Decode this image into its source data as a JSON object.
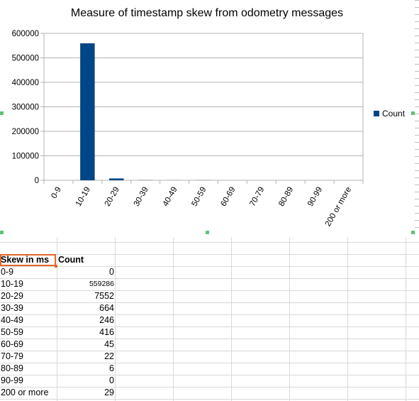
{
  "chart_data": {
    "type": "bar",
    "title": "Measure of timestamp skew from odometry messages",
    "categories": [
      "0-9",
      "10-19",
      "20-29",
      "30-39",
      "40-49",
      "50-59",
      "60-69",
      "70-79",
      "80-89",
      "90-99",
      "200 or more"
    ],
    "series": [
      {
        "name": "Count",
        "values": [
          0,
          559286,
          7552,
          664,
          246,
          416,
          45,
          22,
          6,
          0,
          29
        ],
        "color": "#004586"
      }
    ],
    "ylim": [
      0,
      600000
    ],
    "yticks": [
      "600000",
      "500000",
      "400000",
      "300000",
      "200000",
      "100000",
      "0"
    ],
    "grid": true,
    "legend": "right"
  },
  "table": {
    "headers": [
      "Skew in ms",
      "Count"
    ],
    "rows": [
      [
        "0-9",
        "0"
      ],
      [
        "10-19",
        "559286"
      ],
      [
        "20-29",
        "7552"
      ],
      [
        "30-39",
        "664"
      ],
      [
        "40-49",
        "246"
      ],
      [
        "50-59",
        "416"
      ],
      [
        "60-69",
        "45"
      ],
      [
        "70-79",
        "22"
      ],
      [
        "80-89",
        "6"
      ],
      [
        "90-99",
        "0"
      ],
      [
        "200 or more",
        "29"
      ]
    ]
  },
  "colors": {
    "bar": "#004586",
    "selection": "#e0662b",
    "handle": "#5ec27a"
  }
}
